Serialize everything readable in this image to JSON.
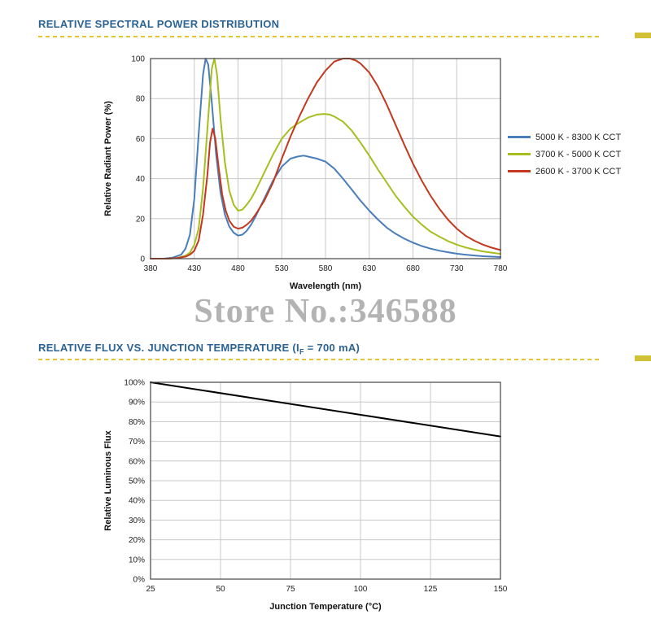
{
  "page": {
    "background": "#ffffff"
  },
  "section1": {
    "title": "RELATIVE SPECTRAL POWER DISTRIBUTION"
  },
  "section2": {
    "title_prefix": "RELATIVE FLUX VS. JUNCTION TEMPERATURE (I",
    "title_sub": "F",
    "title_suffix": " = 700 mA)"
  },
  "watermark": {
    "text": "Store No.:346588"
  },
  "colors": {
    "header_blue": "#2B6394",
    "underline_gold": "#E5C42C",
    "grid_gray": "#c8c8c8",
    "series_blue": "#4A7EBB",
    "series_yellow_green": "#A8BE1E",
    "series_red": "#C3391F",
    "flux_line": "#000000"
  },
  "chart_data": [
    {
      "type": "line",
      "title": "RELATIVE SPECTRAL POWER DISTRIBUTION",
      "xlabel": "Wavelength (nm)",
      "ylabel": "Relative Radiant Power (%)",
      "xlim": [
        380,
        780
      ],
      "ylim": [
        0,
        100
      ],
      "xticks": [
        380,
        430,
        480,
        530,
        580,
        630,
        680,
        730,
        780
      ],
      "yticks": [
        0,
        20,
        40,
        60,
        80,
        100
      ],
      "xtick_suffix": "",
      "ytick_suffix": "",
      "grid": true,
      "legend_position": "right",
      "series": [
        {
          "name": "5000 K - 8300 K CCT",
          "color": "#4A7EBB",
          "points": [
            [
              380,
              0
            ],
            [
              395,
              0
            ],
            [
              405,
              0.5
            ],
            [
              415,
              2
            ],
            [
              420,
              5
            ],
            [
              425,
              12
            ],
            [
              430,
              30
            ],
            [
              435,
              62
            ],
            [
              440,
              92
            ],
            [
              443,
              100
            ],
            [
              446,
              97
            ],
            [
              450,
              78
            ],
            [
              455,
              52
            ],
            [
              460,
              33
            ],
            [
              465,
              22
            ],
            [
              470,
              16
            ],
            [
              475,
              13
            ],
            [
              480,
              11.5
            ],
            [
              485,
              12
            ],
            [
              490,
              14
            ],
            [
              495,
              17
            ],
            [
              500,
              21
            ],
            [
              510,
              30
            ],
            [
              520,
              39
            ],
            [
              530,
              46
            ],
            [
              540,
              50
            ],
            [
              548,
              51
            ],
            [
              555,
              51.5
            ],
            [
              560,
              51
            ],
            [
              570,
              50
            ],
            [
              580,
              48.5
            ],
            [
              590,
              45
            ],
            [
              600,
              40
            ],
            [
              610,
              34.5
            ],
            [
              620,
              29
            ],
            [
              630,
              24
            ],
            [
              640,
              19.5
            ],
            [
              650,
              15.5
            ],
            [
              660,
              12.5
            ],
            [
              670,
              10
            ],
            [
              680,
              8
            ],
            [
              690,
              6.3
            ],
            [
              700,
              5
            ],
            [
              710,
              4
            ],
            [
              720,
              3.2
            ],
            [
              730,
              2.5
            ],
            [
              740,
              2
            ],
            [
              750,
              1.6
            ],
            [
              760,
              1.2
            ],
            [
              770,
              1
            ],
            [
              780,
              0.8
            ]
          ]
        },
        {
          "name": "3700 K - 5000 K CCT",
          "color": "#A8BE1E",
          "points": [
            [
              380,
              0
            ],
            [
              400,
              0
            ],
            [
              410,
              0.3
            ],
            [
              420,
              1.5
            ],
            [
              425,
              3
            ],
            [
              430,
              7
            ],
            [
              435,
              15
            ],
            [
              440,
              35
            ],
            [
              445,
              65
            ],
            [
              450,
              95
            ],
            [
              453,
              100
            ],
            [
              456,
              92
            ],
            [
              460,
              70
            ],
            [
              465,
              48
            ],
            [
              470,
              34
            ],
            [
              475,
              27
            ],
            [
              480,
              24
            ],
            [
              485,
              24.5
            ],
            [
              490,
              27
            ],
            [
              495,
              30
            ],
            [
              500,
              34
            ],
            [
              510,
              43
            ],
            [
              520,
              52
            ],
            [
              530,
              60
            ],
            [
              540,
              65
            ],
            [
              550,
              68
            ],
            [
              560,
              70.5
            ],
            [
              570,
              72
            ],
            [
              578,
              72.3
            ],
            [
              585,
              72
            ],
            [
              590,
              71
            ],
            [
              600,
              68.5
            ],
            [
              610,
              64
            ],
            [
              620,
              58
            ],
            [
              630,
              51.5
            ],
            [
              640,
              44.5
            ],
            [
              650,
              38
            ],
            [
              660,
              31.5
            ],
            [
              670,
              26
            ],
            [
              680,
              21
            ],
            [
              690,
              17
            ],
            [
              700,
              13.5
            ],
            [
              710,
              11
            ],
            [
              720,
              8.8
            ],
            [
              730,
              7
            ],
            [
              740,
              5.6
            ],
            [
              750,
              4.5
            ],
            [
              760,
              3.6
            ],
            [
              770,
              3
            ],
            [
              780,
              2.4
            ]
          ]
        },
        {
          "name": "2600 K - 3700 K CCT",
          "color": "#C3391F",
          "points": [
            [
              380,
              0
            ],
            [
              400,
              0
            ],
            [
              410,
              0.3
            ],
            [
              420,
              1
            ],
            [
              425,
              2
            ],
            [
              430,
              4
            ],
            [
              435,
              9
            ],
            [
              440,
              22
            ],
            [
              445,
              42
            ],
            [
              448,
              58
            ],
            [
              451,
              65
            ],
            [
              454,
              60
            ],
            [
              458,
              45
            ],
            [
              462,
              32
            ],
            [
              466,
              24
            ],
            [
              470,
              19
            ],
            [
              475,
              16
            ],
            [
              480,
              15
            ],
            [
              485,
              15.5
            ],
            [
              490,
              17
            ],
            [
              495,
              19
            ],
            [
              500,
              22
            ],
            [
              510,
              29
            ],
            [
              520,
              38
            ],
            [
              530,
              50
            ],
            [
              540,
              61
            ],
            [
              550,
              71
            ],
            [
              560,
              80
            ],
            [
              570,
              88
            ],
            [
              580,
              94
            ],
            [
              590,
              98.5
            ],
            [
              600,
              100
            ],
            [
              608,
              100
            ],
            [
              615,
              99
            ],
            [
              620,
              97.5
            ],
            [
              630,
              93
            ],
            [
              640,
              86
            ],
            [
              650,
              77
            ],
            [
              660,
              67
            ],
            [
              670,
              57
            ],
            [
              680,
              47.5
            ],
            [
              690,
              39
            ],
            [
              700,
              31.5
            ],
            [
              710,
              25
            ],
            [
              720,
              19.5
            ],
            [
              730,
              15
            ],
            [
              740,
              11.5
            ],
            [
              750,
              9
            ],
            [
              760,
              7
            ],
            [
              770,
              5.5
            ],
            [
              780,
              4.3
            ]
          ]
        }
      ]
    },
    {
      "type": "line",
      "title": "RELATIVE FLUX VS. JUNCTION TEMPERATURE (IF = 700 mA)",
      "xlabel": "Junction Temperature (°C)",
      "ylabel": "Relative Luminous Flux",
      "xlim": [
        25,
        150
      ],
      "ylim": [
        0,
        100
      ],
      "xticks": [
        25,
        50,
        75,
        100,
        125,
        150
      ],
      "yticks": [
        0,
        10,
        20,
        30,
        40,
        50,
        60,
        70,
        80,
        90,
        100
      ],
      "xtick_suffix": "",
      "ytick_suffix": "%",
      "grid": true,
      "legend_position": "none",
      "series": [
        {
          "name": "Relative Luminous Flux",
          "color": "#000000",
          "points": [
            [
              25,
              100
            ],
            [
              150,
              72.5
            ]
          ]
        }
      ]
    }
  ]
}
